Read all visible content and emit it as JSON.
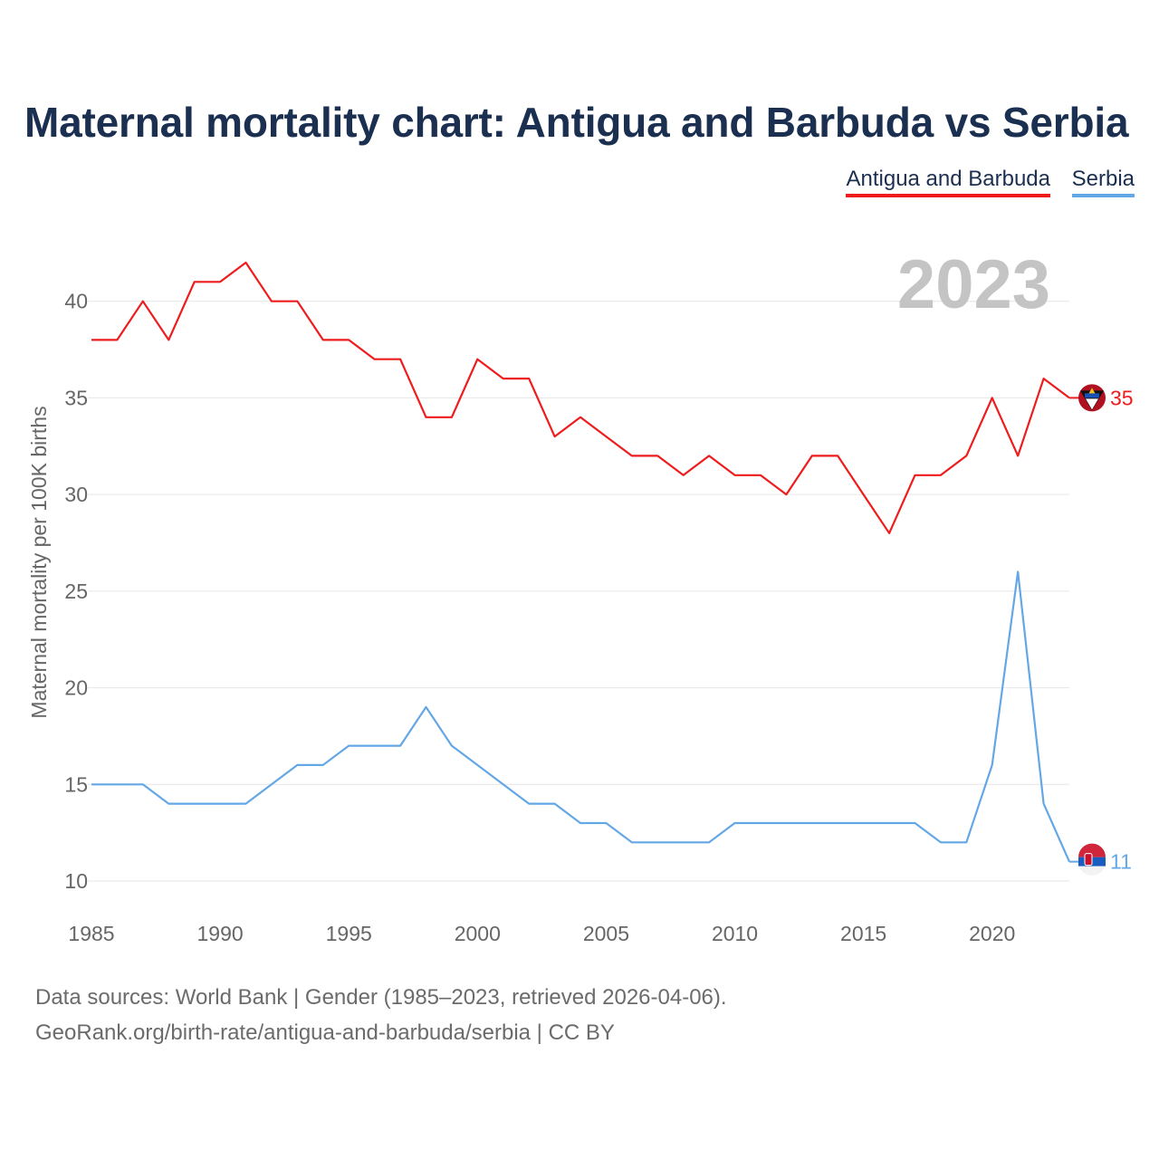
{
  "title": "Maternal mortality chart: Antigua and Barbuda vs Serbia",
  "legend": {
    "antigua": "Antigua and Barbuda",
    "serbia": "Serbia"
  },
  "year_label": "2023",
  "sources": {
    "line1": "Data sources: World Bank | Gender (1985–2023, retrieved 2026-04-06).",
    "line2": "GeoRank.org/birth-rate/antigua-and-barbuda/serbia | CC BY"
  },
  "colors": {
    "antigua": "#ee1c1c",
    "serbia": "#64a7e6",
    "title": "#1b2f51",
    "axis_text": "#666666",
    "grid": "#e6e6e6",
    "year_watermark": "#c4c4c4"
  },
  "chart_data": {
    "type": "line",
    "title": "Maternal mortality chart: Antigua and Barbuda vs Serbia",
    "xlabel": "",
    "ylabel": "Maternal mortality per 100K births",
    "xlim": [
      1985,
      2023
    ],
    "ylim": [
      10,
      42
    ],
    "x_ticks": [
      1985,
      1990,
      1995,
      2000,
      2005,
      2010,
      2015,
      2020
    ],
    "y_ticks": [
      10,
      15,
      20,
      25,
      30,
      35,
      40
    ],
    "x": [
      1985,
      1986,
      1987,
      1988,
      1989,
      1990,
      1991,
      1992,
      1993,
      1994,
      1995,
      1996,
      1997,
      1998,
      1999,
      2000,
      2001,
      2002,
      2003,
      2004,
      2005,
      2006,
      2007,
      2008,
      2009,
      2010,
      2011,
      2012,
      2013,
      2014,
      2015,
      2016,
      2017,
      2018,
      2019,
      2020,
      2021,
      2022,
      2023
    ],
    "series": [
      {
        "name": "Antigua and Barbuda",
        "color": "#ee1c1c",
        "values": [
          38,
          38,
          40,
          38,
          41,
          41,
          42,
          40,
          40,
          38,
          38,
          37,
          37,
          34,
          34,
          37,
          36,
          36,
          33,
          34,
          33,
          32,
          32,
          31,
          32,
          31,
          31,
          30,
          32,
          32,
          30,
          28,
          31,
          31,
          32,
          35,
          32,
          36,
          35
        ],
        "end_label": "35"
      },
      {
        "name": "Serbia",
        "color": "#64a7e6",
        "values": [
          15,
          15,
          15,
          14,
          14,
          14,
          14,
          15,
          16,
          16,
          17,
          17,
          17,
          19,
          17,
          16,
          15,
          14,
          14,
          13,
          13,
          12,
          12,
          12,
          12,
          13,
          13,
          13,
          13,
          13,
          13,
          13,
          13,
          12,
          12,
          16,
          26,
          14,
          11
        ],
        "end_label": "11"
      }
    ]
  }
}
